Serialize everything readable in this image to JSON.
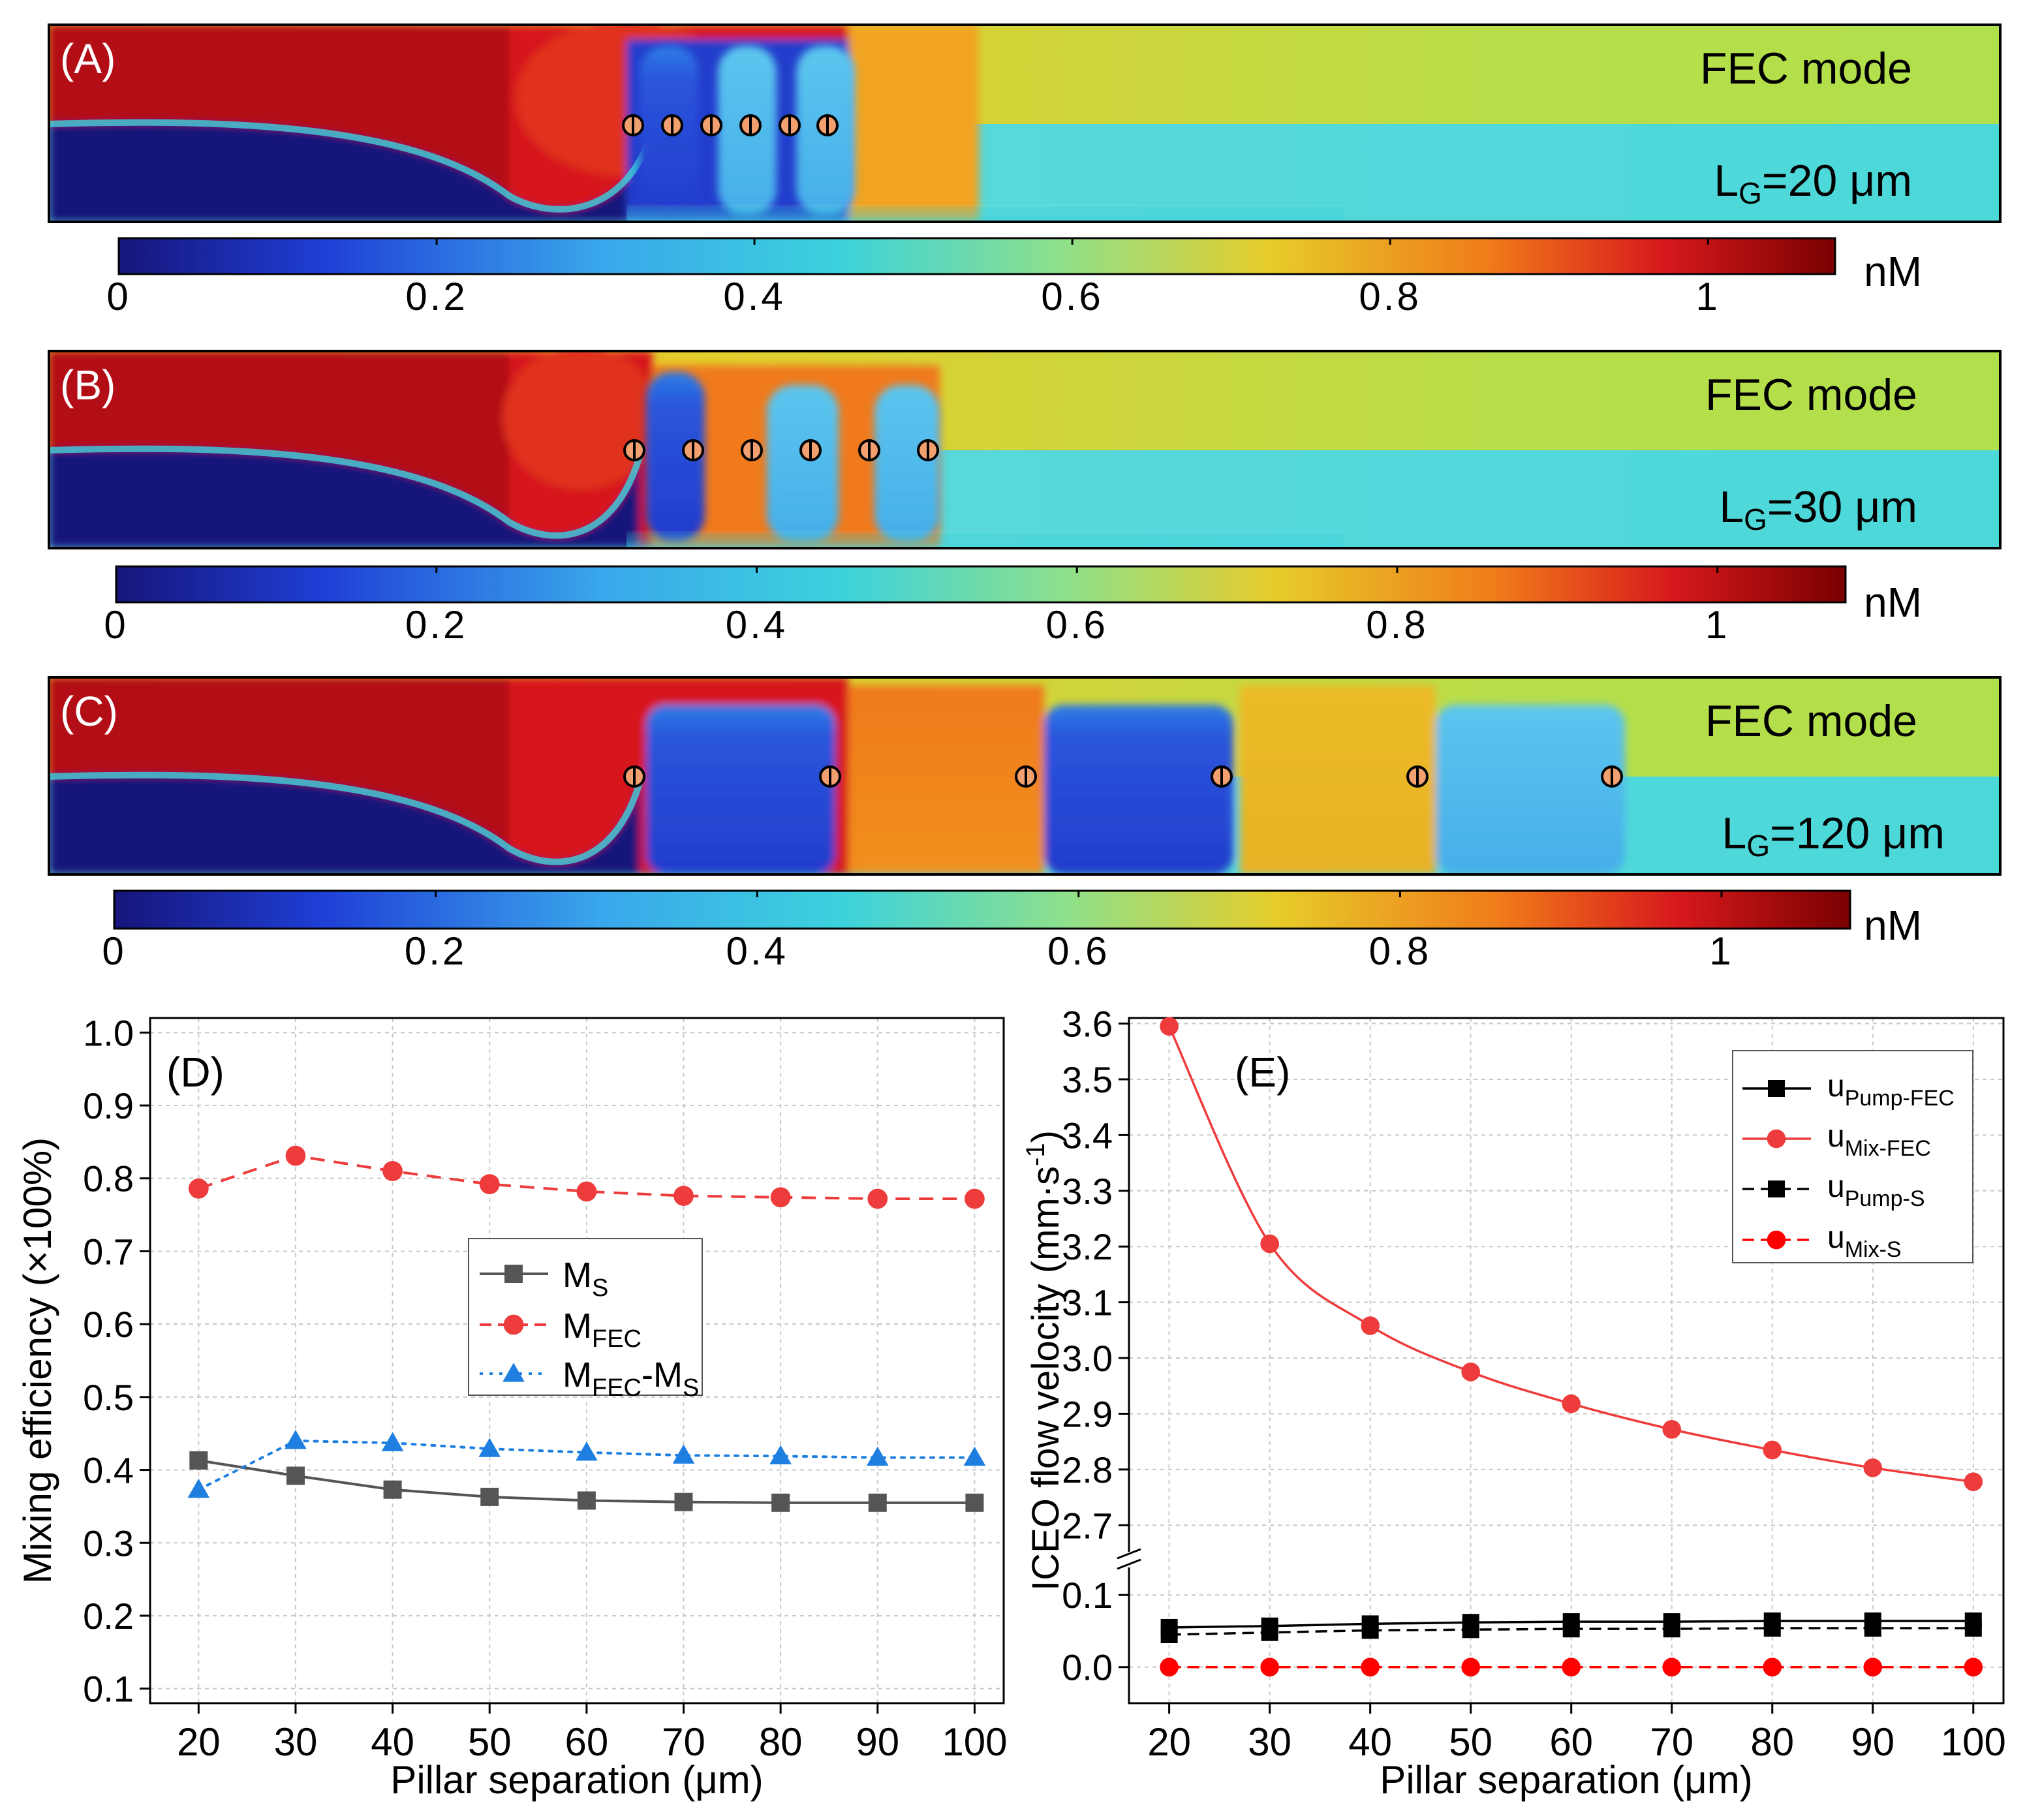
{
  "panels_top": [
    {
      "label": "(A)",
      "mode_label": "FEC mode",
      "gap_prefix": "L",
      "gap_sub": "G",
      "gap_value": "=20 μm",
      "colorbar": {
        "ticks": [
          "0",
          "0.2",
          "0.4",
          "0.6",
          "0.8",
          "1"
        ],
        "unit": "nM"
      }
    },
    {
      "label": "(B)",
      "mode_label": "FEC mode",
      "gap_prefix": "L",
      "gap_sub": "G",
      "gap_value": "=30 μm",
      "colorbar": {
        "ticks": [
          "0",
          "0.2",
          "0.4",
          "0.6",
          "0.8",
          "1"
        ],
        "unit": "nM"
      }
    },
    {
      "label": "(C)",
      "mode_label": "FEC mode",
      "gap_prefix": "L",
      "gap_sub": "G",
      "gap_value": "=120 μm",
      "colorbar": {
        "ticks": [
          "0",
          "0.2",
          "0.4",
          "0.6",
          "0.8",
          "1"
        ],
        "unit": "nM"
      }
    }
  ],
  "colors": {
    "dark_red": "#8b0000",
    "red": "#d7191c",
    "orange": "#f07a1a",
    "yellow": "#e6cc2a",
    "cyan": "#3cd2dc",
    "blue": "#1f3fd6",
    "navy": "#16157a",
    "series_gray": "#555555",
    "series_red": "#ee3b3b",
    "series_blue": "#1e7fe0",
    "series_black": "#000000"
  },
  "chart_data": [
    {
      "type": "line",
      "panel_label": "(D)",
      "xlabel": "Pillar separation (μm)",
      "ylabel": "Mixing efficiency (×100%)",
      "x": [
        20,
        30,
        40,
        50,
        60,
        70,
        80,
        90,
        100
      ],
      "xlim": [
        15,
        103
      ],
      "ylim": [
        0.08,
        1.02
      ],
      "xticks": [
        "20",
        "30",
        "40",
        "50",
        "60",
        "70",
        "80",
        "90",
        "100"
      ],
      "yticks": [
        "0.1",
        "0.2",
        "0.3",
        "0.4",
        "0.5",
        "0.6",
        "0.7",
        "0.8",
        "0.9",
        "1.0"
      ],
      "legend_position": "center",
      "series": [
        {
          "name": "M",
          "sub": "S",
          "marker": "square",
          "line": "solid",
          "color": "#555555",
          "values": [
            0.413,
            0.392,
            0.373,
            0.363,
            0.358,
            0.356,
            0.355,
            0.355,
            0.355
          ]
        },
        {
          "name": "M",
          "sub": "FEC",
          "marker": "circle",
          "line": "dashed",
          "color": "#ee3b3b",
          "values": [
            0.786,
            0.831,
            0.81,
            0.792,
            0.782,
            0.776,
            0.774,
            0.772,
            0.772
          ]
        },
        {
          "name": "M",
          "sub": "FEC",
          "name2": "-M",
          "sub2": "S",
          "marker": "triangle",
          "line": "dotted",
          "color": "#1e7fe0",
          "values": [
            0.373,
            0.44,
            0.437,
            0.429,
            0.424,
            0.42,
            0.419,
            0.417,
            0.417
          ]
        }
      ]
    },
    {
      "type": "line",
      "panel_label": "(E)",
      "xlabel": "Pillar separation (μm)",
      "ylabel": "ICEO flow velocity (mm·s",
      "ylabel_sup": "-1",
      "ylabel_end": ")",
      "axis_break": "between 0.1 and 2.7",
      "x": [
        20,
        30,
        40,
        50,
        60,
        70,
        80,
        90,
        100
      ],
      "xlim": [
        16,
        103
      ],
      "ylim_lower": [
        -0.05,
        0.14
      ],
      "ylim_upper": [
        2.65,
        3.61
      ],
      "xticks": [
        "20",
        "30",
        "40",
        "50",
        "60",
        "70",
        "80",
        "90",
        "100"
      ],
      "yticks_lower": [
        "0.0",
        "0.1"
      ],
      "yticks_upper": [
        "2.7",
        "2.8",
        "2.9",
        "3.0",
        "3.1",
        "3.2",
        "3.3",
        "3.4",
        "3.5",
        "3.6"
      ],
      "legend_position": "top-right",
      "series": [
        {
          "name": "u",
          "sub": "Pump-FEC",
          "marker": "square",
          "line": "solid",
          "color": "#000000",
          "values": [
            0.055,
            0.057,
            0.06,
            0.062,
            0.063,
            0.063,
            0.064,
            0.064,
            0.064
          ]
        },
        {
          "name": "u",
          "sub": "Mix-FEC",
          "marker": "circle",
          "line": "solid",
          "color": "#ee3b3b",
          "values": [
            3.595,
            3.205,
            3.058,
            2.975,
            2.918,
            2.872,
            2.835,
            2.803,
            2.778
          ]
        },
        {
          "name": "u",
          "sub": "Pump-S",
          "marker": "square",
          "line": "dashed",
          "color": "#000000",
          "values": [
            0.045,
            0.048,
            0.051,
            0.052,
            0.053,
            0.053,
            0.054,
            0.054,
            0.054
          ]
        },
        {
          "name": "u",
          "sub": "Mix-S",
          "marker": "circle",
          "line": "dashed",
          "color": "#ff0000",
          "values": [
            0.0,
            0.0,
            0.0,
            0.0,
            0.0,
            0.0,
            0.0,
            0.0,
            0.0
          ]
        }
      ]
    }
  ]
}
